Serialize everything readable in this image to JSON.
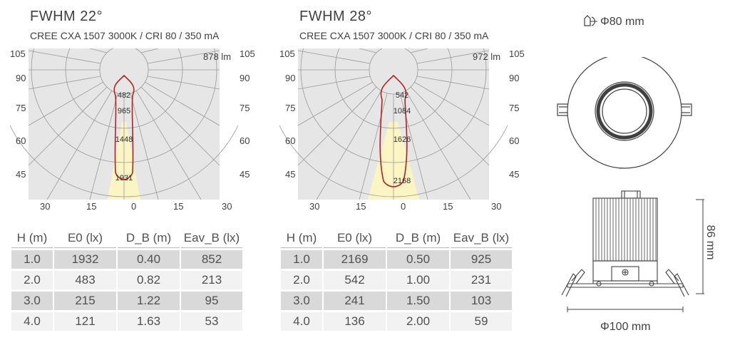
{
  "panels": [
    {
      "title": "FWHM  22°",
      "subtitle": "CREE CXA 1507 3000K / CRI 80 / 350 mA",
      "lumen": "878 lm",
      "curve_values": [
        "482",
        "965",
        "1448",
        "1931"
      ],
      "table": {
        "headers": [
          "H (m)",
          "E0 (lx)",
          "D_B (m)",
          "Eav_B (lx)"
        ],
        "rows": [
          [
            "1.0",
            "1932",
            "0.40",
            "852"
          ],
          [
            "2.0",
            "483",
            "0.82",
            "213"
          ],
          [
            "3.0",
            "215",
            "1.22",
            "95"
          ],
          [
            "4.0",
            "121",
            "1.63",
            "53"
          ]
        ]
      }
    },
    {
      "title": "FWHM  28°",
      "subtitle": "CREE CXA 1507 3000K / CRI 80 / 350 mA",
      "lumen": "972 lm",
      "curve_values": [
        "542",
        "1084",
        "1626",
        "2168"
      ],
      "table": {
        "headers": [
          "H (m)",
          "E0 (lx)",
          "D_B (m)",
          "Eav_B (lx)"
        ],
        "rows": [
          [
            "1.0",
            "2169",
            "0.50",
            "925"
          ],
          [
            "2.0",
            "542",
            "1.00",
            "231"
          ],
          [
            "3.0",
            "241",
            "1.50",
            "103"
          ],
          [
            "4.0",
            "136",
            "2.00",
            "59"
          ]
        ]
      }
    }
  ],
  "polar_axis": {
    "side_labels": [
      "105",
      "90",
      "75",
      "60",
      "45"
    ],
    "bottom_labels": [
      "30",
      "15",
      "0",
      "15",
      "30"
    ]
  },
  "drawing": {
    "cutout": "Φ80 mm",
    "height": "86 mm",
    "width": "Φ100 mm"
  },
  "colors": {
    "curve": "#b22222",
    "beam_fill": "#fbf5c4",
    "grid": "#9a9a9a",
    "panel_bg": "#e6e6e6"
  }
}
